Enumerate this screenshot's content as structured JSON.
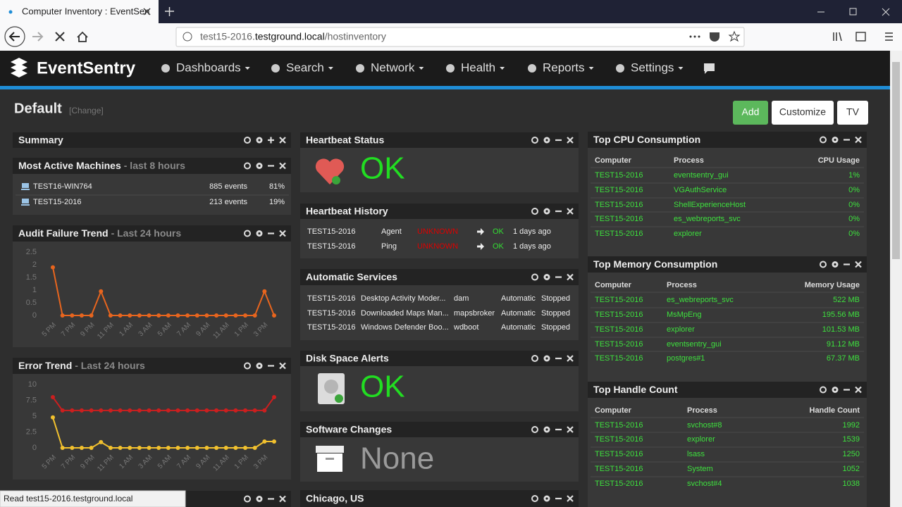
{
  "browser": {
    "tab_title": "Computer Inventory : EventSen",
    "url_sub": "test15-2016.",
    "url_host": "testground.local",
    "url_path": "/hostinventory",
    "status": "Read test15-2016.testground.local"
  },
  "nav": {
    "brand": "EventSentry",
    "items": [
      "Dashboards",
      "Search",
      "Network",
      "Health",
      "Reports",
      "Settings"
    ]
  },
  "dashboard": {
    "title": "Default",
    "change": "[Change]",
    "buttons": [
      "Add",
      "Customize",
      "TV"
    ]
  },
  "summary": {
    "title": "Summary"
  },
  "most_active": {
    "title": "Most Active Machines",
    "subtitle": "- last 8 hours",
    "rows": [
      [
        "TEST16-WIN764",
        "885 events",
        "81%"
      ],
      [
        "TEST15-2016",
        "213 events",
        "19%"
      ]
    ]
  },
  "chart_data": [
    {
      "type": "line",
      "title": "Audit Failure Trend",
      "subtitle": "- Last 24 hours",
      "categories": [
        "5 PM",
        null,
        "7 PM",
        null,
        "9 PM",
        null,
        "11 PM",
        null,
        "1 AM",
        null,
        "3 AM",
        null,
        "5 AM",
        null,
        "7 AM",
        null,
        "9 AM",
        null,
        "11 AM",
        null,
        "1 PM",
        null,
        "3 PM",
        null
      ],
      "series": [
        {
          "color": "#e8651e",
          "values": [
            1.9,
            0,
            0,
            0,
            0,
            0.95,
            0,
            0,
            0,
            0,
            0,
            0,
            0,
            0,
            0,
            0,
            0,
            0,
            0,
            0,
            0,
            0,
            0.95,
            0
          ]
        }
      ],
      "ylim": [
        0,
        2.5
      ],
      "yticks": [
        0,
        0.5,
        1,
        1.5,
        2,
        2.5
      ]
    },
    {
      "type": "line",
      "title": "Error Trend",
      "subtitle": "- Last 24 hours",
      "categories": [
        "5 PM",
        null,
        "7 PM",
        null,
        "9 PM",
        null,
        "11 PM",
        null,
        "1 AM",
        null,
        "3 AM",
        null,
        "5 AM",
        null,
        "7 AM",
        null,
        "9 AM",
        null,
        "11 AM",
        null,
        "1 PM",
        null,
        "3 PM",
        null
      ],
      "series": [
        {
          "color": "#cc1f1f",
          "values": [
            8,
            5.9,
            5.9,
            5.9,
            5.9,
            5.9,
            5.9,
            5.9,
            5.9,
            5.9,
            5.9,
            5.9,
            5.9,
            5.9,
            5.9,
            5.9,
            5.9,
            5.9,
            5.9,
            5.9,
            5.9,
            5.9,
            5.9,
            8
          ]
        },
        {
          "color": "#f2c12e",
          "values": [
            4.8,
            0,
            0,
            0,
            0,
            0.9,
            0,
            0,
            0,
            0,
            0,
            0,
            0,
            0,
            0,
            0,
            0,
            0,
            0,
            0,
            0,
            0,
            1,
            1
          ]
        }
      ],
      "ylim": [
        0,
        10
      ],
      "yticks": [
        0,
        2.5,
        5,
        7.5,
        10
      ]
    }
  ],
  "heartbeat_status": {
    "title": "Heartbeat Status",
    "status": "OK"
  },
  "heartbeat_history": {
    "title": "Heartbeat History",
    "rows": [
      [
        "TEST15-2016",
        "Agent",
        "UNKNOWN",
        "OK",
        "1 days ago"
      ],
      [
        "TEST15-2016",
        "Ping",
        "UNKNOWN",
        "OK",
        "1 days ago"
      ]
    ]
  },
  "services": {
    "title": "Automatic Services",
    "rows": [
      [
        "TEST15-2016",
        "Desktop Activity Moder...",
        "dam",
        "Automatic",
        "Stopped"
      ],
      [
        "TEST15-2016",
        "Downloaded Maps Man...",
        "mapsbroker",
        "Automatic",
        "Stopped"
      ],
      [
        "TEST15-2016",
        "Windows Defender Boo...",
        "wdboot",
        "Automatic",
        "Stopped"
      ]
    ]
  },
  "disk_space": {
    "title": "Disk Space Alerts",
    "status": "OK"
  },
  "software_changes": {
    "title": "Software Changes",
    "status": "None"
  },
  "location": {
    "title": "Chicago, US"
  },
  "top_cpu": {
    "title": "Top CPU Consumption",
    "columns": [
      "Computer",
      "Process",
      "CPU Usage"
    ],
    "rows": [
      [
        "TEST15-2016",
        "eventsentry_gui",
        "1%"
      ],
      [
        "TEST15-2016",
        "VGAuthService",
        "0%"
      ],
      [
        "TEST15-2016",
        "ShellExperienceHost",
        "0%"
      ],
      [
        "TEST15-2016",
        "es_webreports_svc",
        "0%"
      ],
      [
        "TEST15-2016",
        "explorer",
        "0%"
      ]
    ]
  },
  "top_memory": {
    "title": "Top Memory Consumption",
    "columns": [
      "Computer",
      "Process",
      "Memory Usage"
    ],
    "rows": [
      [
        "TEST15-2016",
        "es_webreports_svc",
        "522 MB"
      ],
      [
        "TEST15-2016",
        "MsMpEng",
        "195.56 MB"
      ],
      [
        "TEST15-2016",
        "explorer",
        "101.53 MB"
      ],
      [
        "TEST15-2016",
        "eventsentry_gui",
        "91.12 MB"
      ],
      [
        "TEST15-2016",
        "postgres#1",
        "67.37 MB"
      ]
    ]
  },
  "top_handle": {
    "title": "Top Handle Count",
    "columns": [
      "Computer",
      "Process",
      "Handle Count"
    ],
    "rows": [
      [
        "TEST15-2016",
        "svchost#8",
        1992
      ],
      [
        "TEST15-2016",
        "explorer",
        1539
      ],
      [
        "TEST15-2016",
        "lsass",
        1250
      ],
      [
        "TEST15-2016",
        "System",
        1052
      ],
      [
        "TEST15-2016",
        "svchost#4",
        1038
      ]
    ]
  }
}
